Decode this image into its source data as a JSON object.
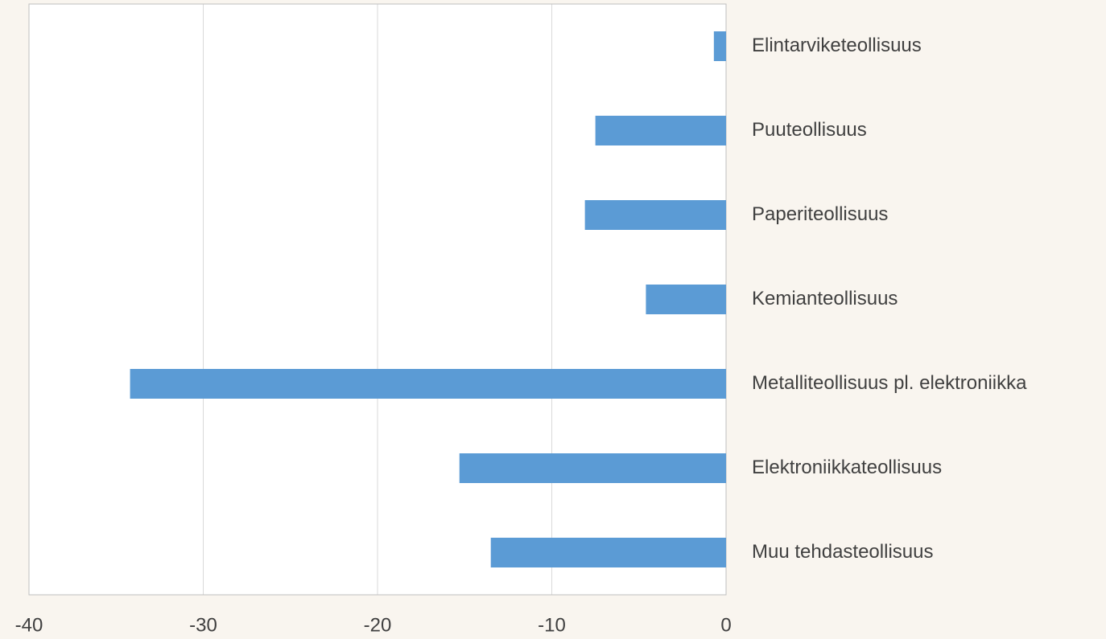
{
  "chart_data": {
    "type": "bar",
    "orientation": "horizontal",
    "categories": [
      "Elintarviketeollisuus",
      "Puuteollisuus",
      "Paperiteollisuus",
      "Kemianteollisuus",
      "Metalliteollisuus pl. elektroniikka",
      "Elektroniikkateollisuus",
      "Muu tehdasteollisuus"
    ],
    "values": [
      -0.7,
      -7.5,
      -8.1,
      -4.6,
      -34.2,
      -15.3,
      -13.5
    ],
    "color": "#5b9bd5",
    "xlim": [
      -40,
      0
    ],
    "xticks": [
      -40,
      -30,
      -20,
      -10,
      0
    ],
    "grid": true
  }
}
